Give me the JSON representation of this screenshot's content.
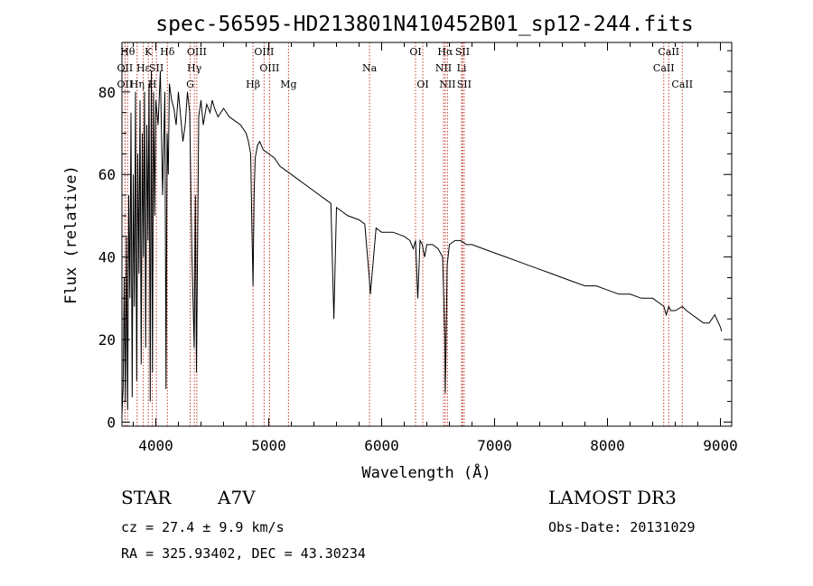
{
  "chart_data": {
    "type": "line",
    "title": "spec-56595-HD213801N410452B01_sp12-244.fits",
    "xlabel": "Wavelength (Å)",
    "ylabel": "Flux (relative)",
    "xlim": [
      3700,
      9100
    ],
    "ylim": [
      -1,
      92
    ],
    "xticks": [
      4000,
      5000,
      6000,
      7000,
      8000,
      9000
    ],
    "yticks": [
      0,
      20,
      40,
      60,
      80
    ],
    "series": [
      {
        "name": "spectrum",
        "x": [
          3700,
          3710,
          3720,
          3730,
          3740,
          3750,
          3760,
          3770,
          3780,
          3790,
          3800,
          3810,
          3820,
          3830,
          3840,
          3850,
          3860,
          3870,
          3880,
          3890,
          3900,
          3910,
          3920,
          3930,
          3940,
          3950,
          3960,
          3970,
          3980,
          3990,
          4000,
          4020,
          4040,
          4060,
          4080,
          4090,
          4100,
          4110,
          4120,
          4140,
          4160,
          4180,
          4200,
          4220,
          4240,
          4260,
          4280,
          4300,
          4320,
          4340,
          4350,
          4360,
          4380,
          4400,
          4420,
          4450,
          4480,
          4500,
          4520,
          4550,
          4600,
          4650,
          4700,
          4750,
          4800,
          4820,
          4840,
          4850,
          4861,
          4870,
          4880,
          4900,
          4920,
          4950,
          5000,
          5050,
          5100,
          5150,
          5200,
          5250,
          5300,
          5400,
          5500,
          5550,
          5577,
          5600,
          5650,
          5700,
          5800,
          5850,
          5890,
          5900,
          5950,
          6000,
          6100,
          6200,
          6250,
          6280,
          6300,
          6320,
          6340,
          6360,
          6380,
          6400,
          6450,
          6500,
          6540,
          6560,
          6563,
          6570,
          6580,
          6600,
          6650,
          6700,
          6750,
          6800,
          6900,
          7000,
          7100,
          7200,
          7300,
          7400,
          7500,
          7600,
          7700,
          7800,
          7900,
          8000,
          8100,
          8200,
          8300,
          8400,
          8450,
          8500,
          8520,
          8542,
          8560,
          8600,
          8662,
          8700,
          8750,
          8800,
          8850,
          8900,
          8950,
          9000,
          9010
        ],
        "y": [
          2,
          8,
          35,
          5,
          45,
          3,
          55,
          30,
          75,
          6,
          60,
          28,
          80,
          10,
          65,
          36,
          78,
          14,
          70,
          40,
          80,
          18,
          72,
          44,
          82,
          5,
          85,
          12,
          80,
          50,
          78,
          72,
          85,
          55,
          80,
          8,
          70,
          60,
          82,
          78,
          76,
          72,
          80,
          74,
          68,
          72,
          80,
          75,
          40,
          18,
          55,
          12,
          74,
          78,
          72,
          77,
          75,
          78,
          76,
          74,
          76,
          74,
          73,
          72,
          70,
          68,
          65,
          48,
          33,
          55,
          64,
          67,
          68,
          66,
          65,
          64,
          62,
          61,
          60,
          59,
          58,
          56,
          54,
          53,
          25,
          52,
          51,
          50,
          49,
          48,
          35,
          31,
          47,
          46,
          46,
          45,
          44,
          42,
          44,
          30,
          44,
          43,
          40,
          43,
          43,
          42,
          40,
          20,
          7,
          18,
          38,
          43,
          44,
          44,
          43,
          43,
          42,
          41,
          40,
          39,
          38,
          37,
          36,
          35,
          34,
          33,
          33,
          32,
          31,
          31,
          30,
          30,
          29,
          28,
          26,
          28,
          27,
          27,
          28,
          27,
          26,
          25,
          24,
          24,
          26,
          23,
          22
        ]
      }
    ],
    "lines": [
      {
        "label": "Hθ",
        "x": 3750,
        "row": 0
      },
      {
        "label": "OII",
        "x": 3727,
        "row": 1
      },
      {
        "label": "OII",
        "x": 3727,
        "row": 2
      },
      {
        "label": "Hη",
        "x": 3835,
        "row": 2
      },
      {
        "label": "Hε",
        "x": 3889,
        "row": 1
      },
      {
        "label": "K",
        "x": 3934,
        "row": 0
      },
      {
        "label": "H",
        "x": 3968,
        "row": 2
      },
      {
        "label": "SII",
        "x": 4005,
        "row": 1
      },
      {
        "label": "Hδ",
        "x": 4102,
        "row": 0
      },
      {
        "label": "OIII",
        "x": 4363,
        "row": 0
      },
      {
        "label": "Hγ",
        "x": 4341,
        "row": 1
      },
      {
        "label": "G",
        "x": 4304,
        "row": 2
      },
      {
        "label": "OIII",
        "x": 4959,
        "row": 0
      },
      {
        "label": "OIII",
        "x": 5007,
        "row": 1
      },
      {
        "label": "Hβ",
        "x": 4861,
        "row": 2
      },
      {
        "label": "Mg",
        "x": 5175,
        "row": 2
      },
      {
        "label": "Na",
        "x": 5893,
        "row": 1
      },
      {
        "label": "OI",
        "x": 6300,
        "row": 0
      },
      {
        "label": "OI",
        "x": 6364,
        "row": 2
      },
      {
        "label": "Hα",
        "x": 6563,
        "row": 0
      },
      {
        "label": "SII",
        "x": 6716,
        "row": 0
      },
      {
        "label": "NII",
        "x": 6548,
        "row": 1
      },
      {
        "label": "Li",
        "x": 6708,
        "row": 1
      },
      {
        "label": "NII",
        "x": 6583,
        "row": 2
      },
      {
        "label": "SII",
        "x": 6731,
        "row": 2
      },
      {
        "label": "CaII",
        "x": 8498,
        "row": 1
      },
      {
        "label": "CaII",
        "x": 8542,
        "row": 0
      },
      {
        "label": "CaII",
        "x": 8662,
        "row": 2
      }
    ]
  },
  "info": {
    "object_class": "STAR",
    "spectral_type": "A7V",
    "survey": "LAMOST DR3",
    "cz": "cz = 27.4 ± 9.9 km/s",
    "obs_date": "Obs-Date: 20131029",
    "coords": "RA = 325.93402, DEC =  43.30234"
  }
}
